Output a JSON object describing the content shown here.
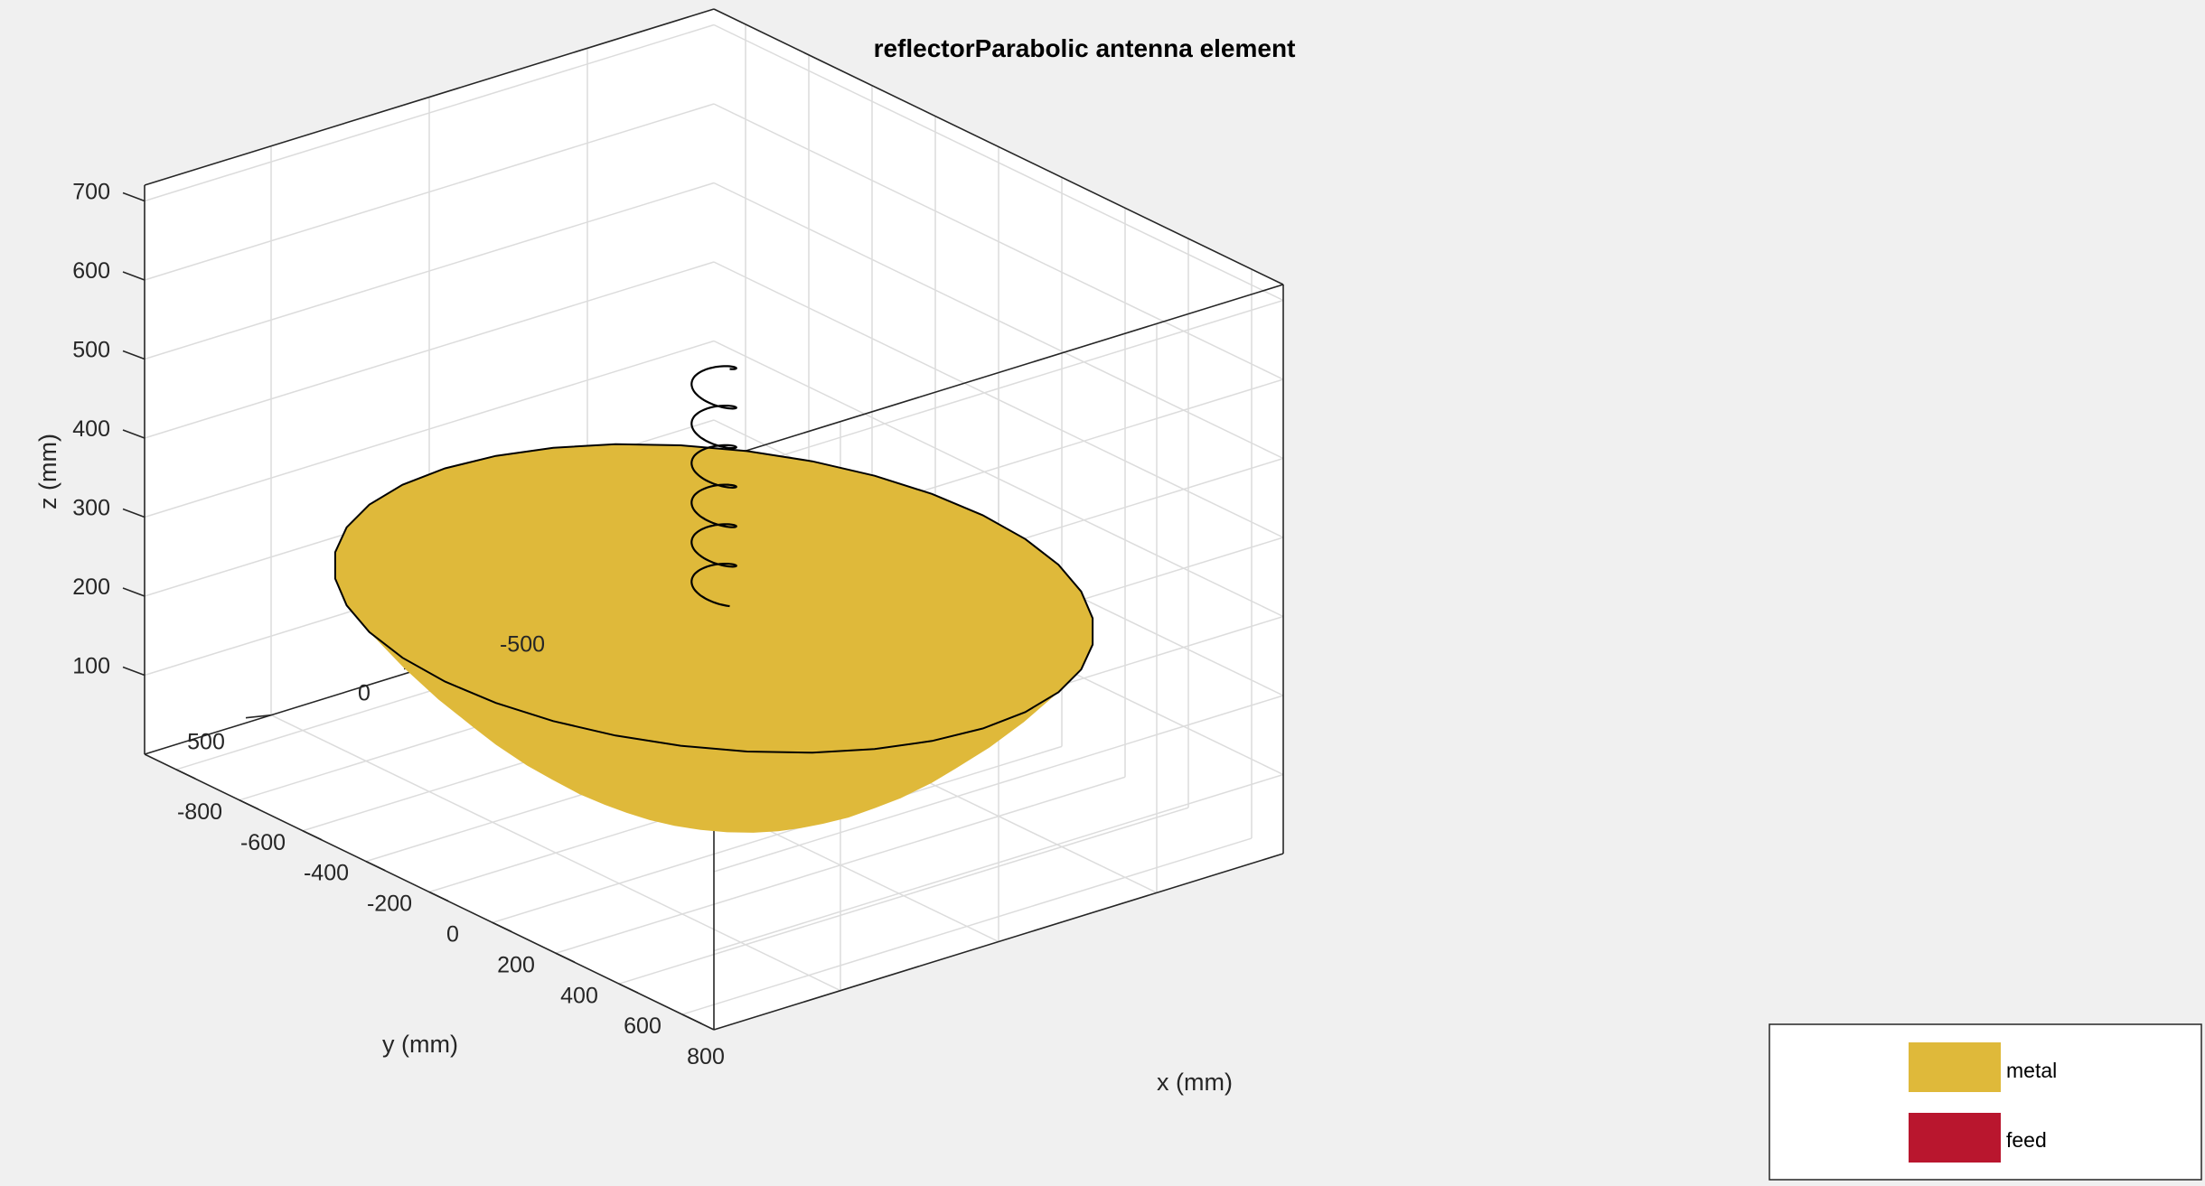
{
  "chart_data": {
    "type": "3d-surface",
    "title": "reflectorParabolic antenna element",
    "xlabel": "x (mm)",
    "ylabel": "y (mm)",
    "zlabel": "z (mm)",
    "xlim": [
      -900,
      900
    ],
    "ylim": [
      -900,
      900
    ],
    "zlim": [
      0,
      720
    ],
    "xticks": [
      -800,
      -600,
      -400,
      -200,
      0,
      200,
      400,
      600,
      800
    ],
    "yticks": [
      500,
      0,
      -500
    ],
    "zticks": [
      100,
      200,
      300,
      400,
      500,
      600,
      700
    ],
    "xtick_labels": [
      "-800",
      "-600",
      "-400",
      "-200",
      "0",
      "200",
      "400",
      "600",
      "800"
    ],
    "ytick_labels": [
      "500",
      "0",
      "-500"
    ],
    "ztick_labels": [
      "100",
      "200",
      "300",
      "400",
      "500",
      "600",
      "700"
    ],
    "grid": true,
    "objects": [
      {
        "name": "reflector",
        "type": "paraboloid",
        "rim_radius_mm": 850,
        "rim_height_mm": 260,
        "vertex_height_mm": 0
      },
      {
        "name": "helix_feed",
        "type": "helix",
        "radius_mm": 50,
        "z_start_mm": 260,
        "z_end_mm": 560,
        "turns": 6
      }
    ],
    "legend": {
      "position": "bottom-right",
      "entries": [
        {
          "label": "metal",
          "color": "#dfb93a"
        },
        {
          "label": "feed",
          "color": "#b9162e"
        }
      ]
    }
  }
}
